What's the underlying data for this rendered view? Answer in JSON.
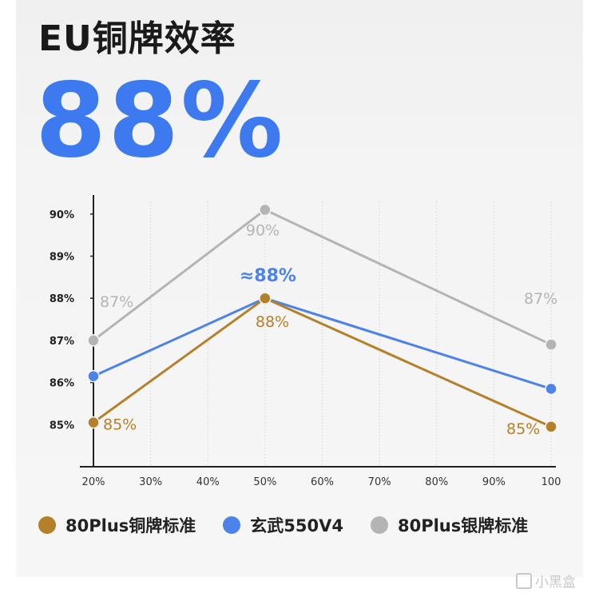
{
  "header": {
    "title": "EU铜牌效率",
    "big_value": "88%"
  },
  "colors": {
    "bronze": "#b5802a",
    "blue": "#4d82ea",
    "silver": "#b4b4b4",
    "axis": "#222222",
    "grid": "#dcdcdc"
  },
  "chart_data": {
    "type": "line",
    "x": [
      "20%",
      "50%",
      "100"
    ],
    "x_ticks": [
      "20%",
      "30%",
      "40%",
      "50%",
      "60%",
      "70%",
      "80%",
      "90%",
      "100"
    ],
    "y_ticks": [
      "90%",
      "89%",
      "88%",
      "87%",
      "86%",
      "85%"
    ],
    "ylim": [
      84.0,
      90.3
    ],
    "grid": true,
    "series": [
      {
        "name": "80Plus银牌标准",
        "color": "#b4b4b4",
        "x": [
          20,
          50,
          100
        ],
        "values": [
          87,
          90.1,
          86.9
        ],
        "labels": [
          "87%",
          "90%",
          "87%"
        ]
      },
      {
        "name": "玄武550V4",
        "color": "#4d82ea",
        "x": [
          20,
          50,
          100
        ],
        "values": [
          86.15,
          88.0,
          85.85
        ],
        "labels": [
          "",
          "≈88%",
          ""
        ]
      },
      {
        "name": "80Plus铜牌标准",
        "color": "#b5802a",
        "x": [
          20,
          50,
          100
        ],
        "values": [
          85.05,
          88.0,
          84.95
        ],
        "labels": [
          "85%",
          "88%",
          "85%"
        ]
      }
    ]
  },
  "legend": {
    "items": [
      {
        "label": "80Plus铜牌标准",
        "color": "#b5802a"
      },
      {
        "label": "玄武550V4",
        "color": "#4d82ea"
      },
      {
        "label": "80Plus银牌标准",
        "color": "#b4b4b4"
      }
    ]
  },
  "watermark": {
    "text": "小黑盒"
  }
}
